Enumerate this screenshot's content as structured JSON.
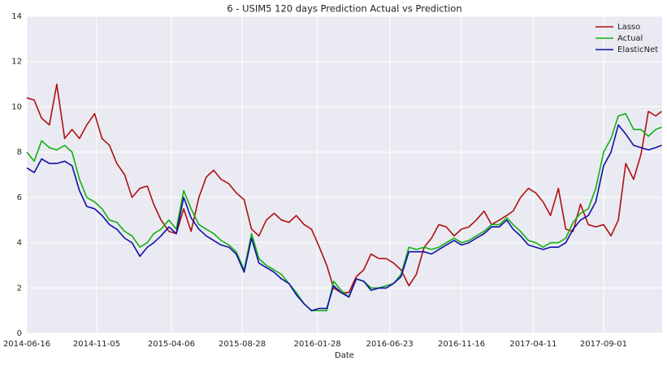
{
  "chart_data": {
    "type": "line",
    "title": "6 - USIM5 120 days Prediction Actual vs Prediction",
    "xlabel": "Date",
    "x": [
      "2014-06-16",
      "2014-07-01",
      "2014-07-16",
      "2014-08-01",
      "2014-08-16",
      "2014-09-01",
      "2014-09-16",
      "2014-10-01",
      "2014-10-16",
      "2014-11-01",
      "2014-11-16",
      "2014-12-01",
      "2014-12-16",
      "2015-01-01",
      "2015-01-16",
      "2015-02-01",
      "2015-02-16",
      "2015-03-01",
      "2015-03-16",
      "2015-04-01",
      "2015-04-16",
      "2015-05-01",
      "2015-05-16",
      "2015-06-01",
      "2015-06-16",
      "2015-07-01",
      "2015-07-16",
      "2015-08-01",
      "2015-08-16",
      "2015-09-01",
      "2015-09-16",
      "2015-10-01",
      "2015-10-16",
      "2015-11-01",
      "2015-11-16",
      "2015-12-01",
      "2015-12-16",
      "2016-01-01",
      "2016-01-16",
      "2016-02-01",
      "2016-02-16",
      "2016-03-01",
      "2016-03-16",
      "2016-04-01",
      "2016-04-16",
      "2016-05-01",
      "2016-05-16",
      "2016-06-01",
      "2016-06-16",
      "2016-07-01",
      "2016-07-16",
      "2016-08-01",
      "2016-08-16",
      "2016-09-01",
      "2016-09-16",
      "2016-10-01",
      "2016-10-16",
      "2016-11-01",
      "2016-11-16",
      "2016-12-01",
      "2016-12-16",
      "2017-01-01",
      "2017-01-16",
      "2017-02-01",
      "2017-02-16",
      "2017-03-01",
      "2017-03-16",
      "2017-04-01",
      "2017-04-16",
      "2017-05-01",
      "2017-05-16",
      "2017-06-01",
      "2017-06-16",
      "2017-07-01",
      "2017-07-16",
      "2017-08-01",
      "2017-08-16",
      "2017-09-01",
      "2017-09-16",
      "2017-10-01",
      "2017-10-16",
      "2017-11-01",
      "2017-11-16",
      "2017-12-01",
      "2017-12-16",
      "2017-12-28"
    ],
    "series": [
      {
        "name": "Lasso",
        "color": "#b01010",
        "values": [
          10.4,
          10.3,
          9.5,
          9.2,
          11.0,
          8.6,
          9.0,
          8.6,
          9.2,
          9.7,
          8.6,
          8.3,
          7.5,
          7.0,
          6.0,
          6.4,
          6.5,
          5.7,
          5.0,
          4.5,
          4.4,
          5.5,
          4.5,
          6.0,
          6.9,
          7.2,
          6.8,
          6.6,
          6.2,
          5.9,
          4.6,
          4.3,
          5.0,
          5.3,
          5.0,
          4.9,
          5.2,
          4.8,
          4.6,
          3.8,
          3.0,
          2.0,
          1.8,
          1.8,
          2.5,
          2.8,
          3.5,
          3.3,
          3.3,
          3.1,
          2.8,
          2.1,
          2.6,
          3.8,
          4.2,
          4.8,
          4.7,
          4.3,
          4.6,
          4.7,
          5.0,
          5.4,
          4.8,
          5.0,
          5.2,
          5.4,
          6.0,
          6.4,
          6.2,
          5.8,
          5.2,
          6.4,
          4.6,
          4.5,
          5.7,
          4.8,
          4.7,
          4.8,
          4.3,
          5.0,
          7.5,
          6.8,
          7.9,
          9.8,
          9.6,
          9.8
        ]
      },
      {
        "name": "Actual",
        "color": "#12b012",
        "values": [
          8.0,
          7.6,
          8.5,
          8.2,
          8.1,
          8.3,
          8.0,
          6.8,
          6.0,
          5.8,
          5.5,
          5.0,
          4.9,
          4.5,
          4.3,
          3.8,
          4.0,
          4.4,
          4.6,
          5.0,
          4.6,
          6.3,
          5.5,
          4.8,
          4.6,
          4.4,
          4.1,
          3.9,
          3.6,
          2.8,
          4.4,
          3.3,
          3.0,
          2.8,
          2.6,
          2.2,
          1.8,
          1.3,
          1.0,
          1.0,
          1.0,
          2.3,
          1.9,
          1.6,
          2.4,
          2.3,
          2.0,
          2.0,
          2.1,
          2.2,
          2.6,
          3.8,
          3.7,
          3.8,
          3.7,
          3.8,
          4.0,
          4.2,
          4.0,
          4.1,
          4.3,
          4.5,
          4.8,
          4.8,
          5.1,
          4.8,
          4.5,
          4.1,
          4.0,
          3.8,
          4.0,
          4.0,
          4.2,
          4.9,
          5.3,
          5.5,
          6.4,
          8.0,
          8.6,
          9.6,
          9.7,
          9.0,
          9.0,
          8.7,
          9.0,
          9.1
        ]
      },
      {
        "name": "ElasticNet",
        "color": "#1010a8",
        "values": [
          7.3,
          7.1,
          7.7,
          7.5,
          7.5,
          7.6,
          7.4,
          6.3,
          5.6,
          5.5,
          5.2,
          4.8,
          4.6,
          4.2,
          4.0,
          3.4,
          3.8,
          4.0,
          4.3,
          4.7,
          4.4,
          6.0,
          5.1,
          4.6,
          4.3,
          4.1,
          3.9,
          3.8,
          3.5,
          2.7,
          4.2,
          3.1,
          2.9,
          2.7,
          2.4,
          2.2,
          1.7,
          1.3,
          1.0,
          1.1,
          1.1,
          2.1,
          1.8,
          1.6,
          2.4,
          2.3,
          1.9,
          2.0,
          2.0,
          2.2,
          2.5,
          3.6,
          3.6,
          3.6,
          3.5,
          3.7,
          3.9,
          4.1,
          3.9,
          4.0,
          4.2,
          4.4,
          4.7,
          4.7,
          5.0,
          4.6,
          4.3,
          3.9,
          3.8,
          3.7,
          3.8,
          3.8,
          4.0,
          4.6,
          5.0,
          5.2,
          5.8,
          7.4,
          8.0,
          9.2,
          8.8,
          8.3,
          8.2,
          8.1,
          8.2,
          8.3
        ]
      }
    ],
    "xlim": [
      "2014-06-16",
      "2017-12-29"
    ],
    "xticks": [
      "2014-06-16",
      "2014-11-05",
      "2015-04-06",
      "2015-08-28",
      "2016-01-28",
      "2016-06-23",
      "2016-11-16",
      "2017-04-11",
      "2017-09-01"
    ],
    "ylim": [
      0,
      14
    ],
    "yticks": [
      0,
      2,
      4,
      6,
      8,
      10,
      12,
      14
    ],
    "grid": true,
    "legend": "upper right"
  }
}
